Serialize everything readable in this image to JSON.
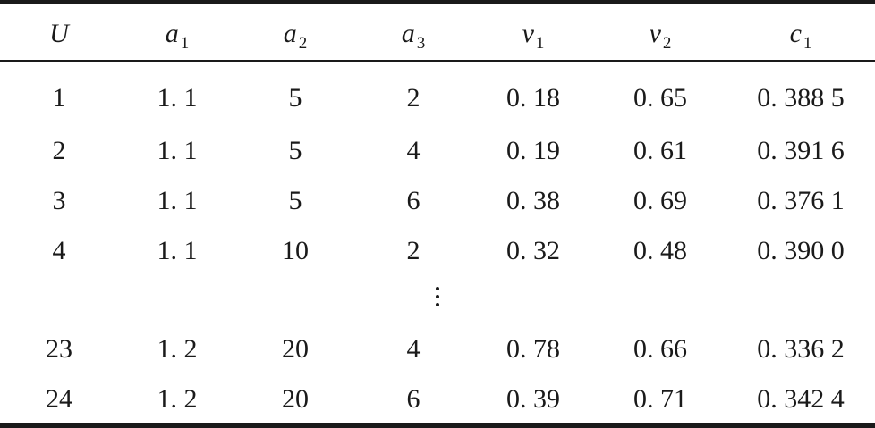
{
  "table": {
    "headers": [
      {
        "var": "U",
        "sub": ""
      },
      {
        "var": "a",
        "sub": "1"
      },
      {
        "var": "a",
        "sub": "2"
      },
      {
        "var": "a",
        "sub": "3"
      },
      {
        "var": "v",
        "sub": "1"
      },
      {
        "var": "v",
        "sub": "2"
      },
      {
        "var": "c",
        "sub": "1"
      }
    ],
    "rows_top": [
      [
        "1",
        "1. 1",
        "5",
        "2",
        "0. 18",
        "0. 65",
        "0. 388 5"
      ],
      [
        "2",
        "1. 1",
        "5",
        "4",
        "0. 19",
        "0. 61",
        "0. 391 6"
      ],
      [
        "3",
        "1. 1",
        "5",
        "6",
        "0. 38",
        "0. 69",
        "0. 376 1"
      ],
      [
        "4",
        "1. 1",
        "10",
        "2",
        "0. 32",
        "0. 48",
        "0. 390 0"
      ]
    ],
    "ellipsis": "⋮",
    "rows_bottom": [
      [
        "23",
        "1. 2",
        "20",
        "4",
        "0. 78",
        "0. 66",
        "0. 336 2"
      ],
      [
        "24",
        "1. 2",
        "20",
        "6",
        "0. 39",
        "0. 71",
        "0. 342 4"
      ]
    ]
  }
}
